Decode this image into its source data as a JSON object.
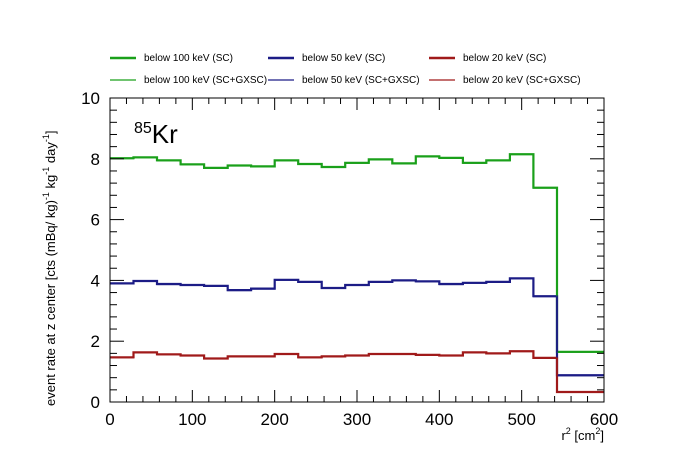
{
  "chart_data": {
    "type": "line",
    "style": "step",
    "title": "",
    "annotation": {
      "superscript": "85",
      "text": "Kr"
    },
    "xlabel": {
      "base": "r",
      "sup": "2",
      "unit_open": " [cm",
      "unit_sup": "2",
      "unit_close": "]"
    },
    "ylabel": {
      "parts": [
        "event rate at z center [cts (mBq/ kg)",
        "-1",
        " kg",
        "-1",
        " day",
        "-1",
        "]"
      ]
    },
    "xlim": [
      0,
      600
    ],
    "ylim": [
      0,
      10
    ],
    "x_ticks": [
      0,
      100,
      200,
      300,
      400,
      500,
      600
    ],
    "y_ticks": [
      0,
      2,
      4,
      6,
      8,
      10
    ],
    "grid": false,
    "legend_position": "top",
    "bin_edges": [
      0,
      28.6,
      57.1,
      85.7,
      114.3,
      142.9,
      171.4,
      200,
      228.6,
      257.1,
      285.7,
      314.3,
      342.9,
      371.4,
      400,
      428.6,
      457.1,
      485.7,
      514.3,
      542.9,
      571.4,
      600
    ],
    "series": [
      {
        "name": "below 100 keV (SC)",
        "color": "#1aa01a",
        "width": 2.2,
        "values": [
          8.02,
          8.05,
          7.95,
          7.82,
          7.7,
          7.78,
          7.75,
          7.95,
          7.83,
          7.73,
          7.87,
          7.98,
          7.85,
          8.08,
          8.03,
          7.87,
          7.95,
          8.15,
          7.05,
          1.65,
          1.65
        ]
      },
      {
        "name": "below 50 keV (SC)",
        "color": "#1c1c86",
        "width": 2.2,
        "values": [
          3.9,
          3.98,
          3.88,
          3.85,
          3.82,
          3.68,
          3.73,
          4.02,
          3.95,
          3.75,
          3.85,
          3.95,
          4.0,
          3.97,
          3.88,
          3.92,
          3.95,
          4.07,
          3.48,
          0.88,
          0.88
        ]
      },
      {
        "name": "below 20 keV (SC)",
        "color": "#a01a1a",
        "width": 2.2,
        "values": [
          1.47,
          1.63,
          1.57,
          1.53,
          1.43,
          1.5,
          1.5,
          1.58,
          1.47,
          1.5,
          1.53,
          1.58,
          1.58,
          1.55,
          1.53,
          1.63,
          1.6,
          1.67,
          1.45,
          0.33,
          0.33
        ]
      },
      {
        "name": "below 100 keV (SC+GXSC)",
        "color": "#1aa01a",
        "width": 0.9,
        "values": [
          8.0,
          8.03,
          7.93,
          7.8,
          7.68,
          7.76,
          7.73,
          7.93,
          7.81,
          7.71,
          7.85,
          7.96,
          7.83,
          8.06,
          8.01,
          7.85,
          7.93,
          8.13,
          7.03,
          1.63,
          1.63
        ]
      },
      {
        "name": "below 50 keV (SC+GXSC)",
        "color": "#1c1c86",
        "width": 0.9,
        "values": [
          3.88,
          3.96,
          3.86,
          3.83,
          3.8,
          3.66,
          3.71,
          4.0,
          3.93,
          3.73,
          3.83,
          3.93,
          3.98,
          3.95,
          3.86,
          3.9,
          3.93,
          4.05,
          3.46,
          0.86,
          0.86
        ]
      },
      {
        "name": "below 20 keV (SC+GXSC)",
        "color": "#a01a1a",
        "width": 0.9,
        "values": [
          1.45,
          1.61,
          1.55,
          1.51,
          1.41,
          1.48,
          1.48,
          1.56,
          1.45,
          1.48,
          1.51,
          1.56,
          1.56,
          1.53,
          1.51,
          1.61,
          1.58,
          1.65,
          1.43,
          0.31,
          0.31
        ]
      }
    ]
  }
}
